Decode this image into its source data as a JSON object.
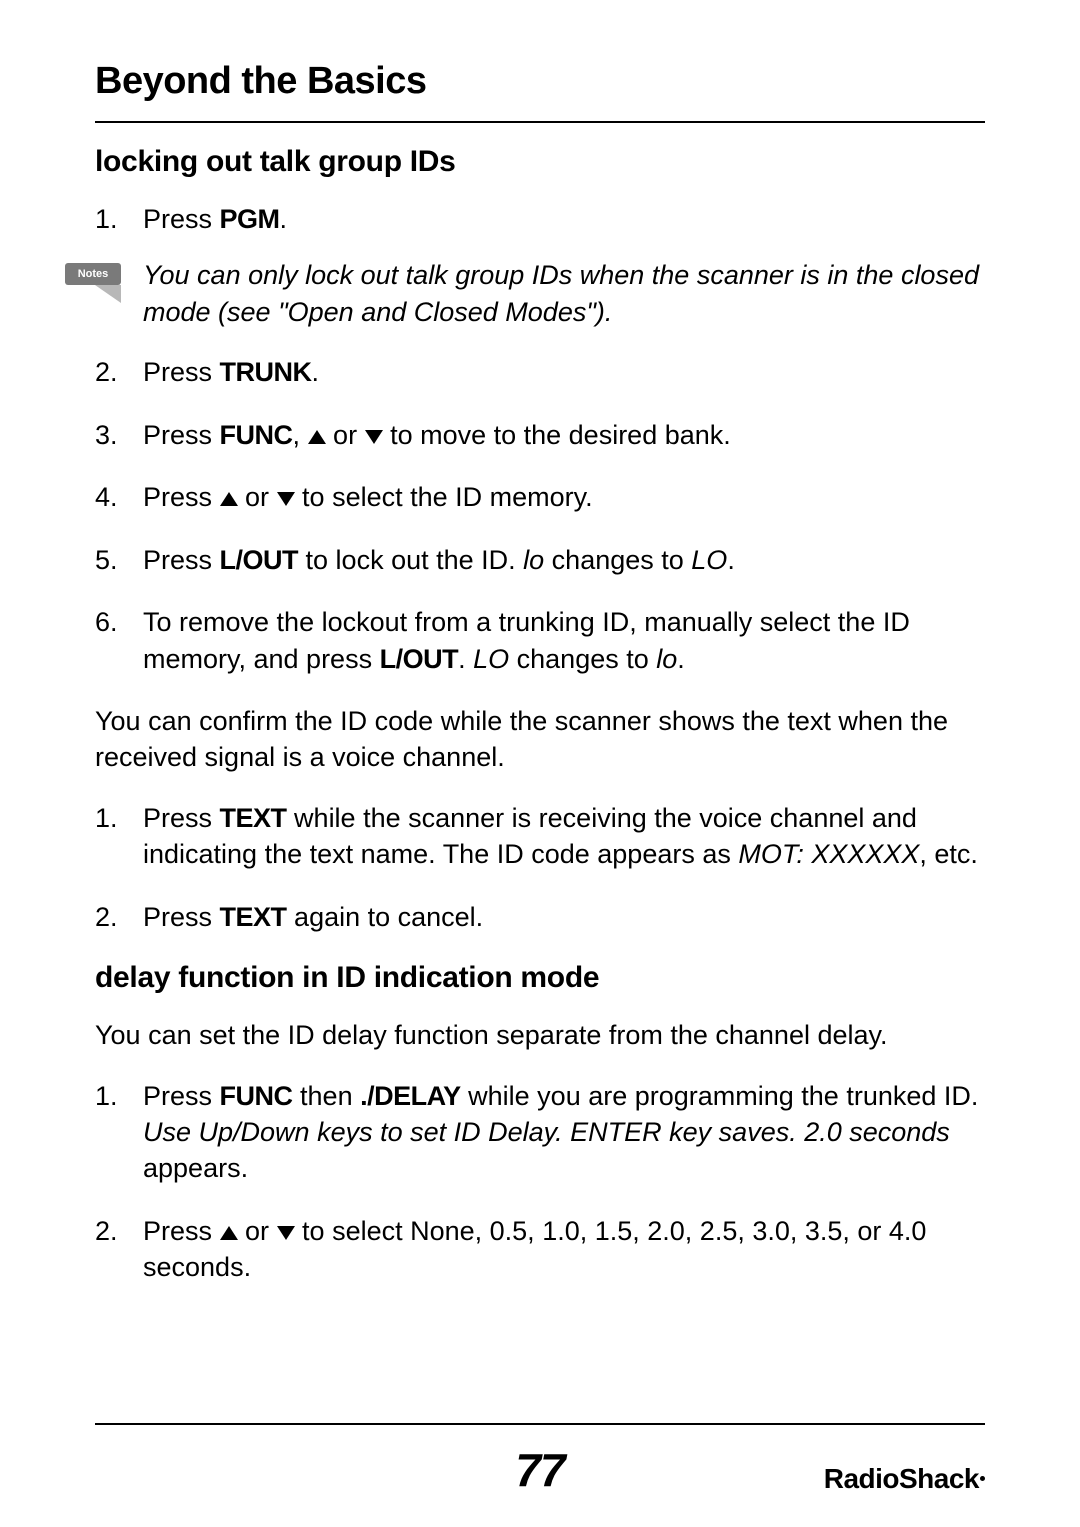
{
  "page": {
    "title": "Beyond the Basics",
    "page_number": "77",
    "brand": "RadioShack"
  },
  "notes_badge": {
    "label": "Notes"
  },
  "section1": {
    "heading": "locking out talk group IDs",
    "step1_num": "1.",
    "step1_a": "Press ",
    "step1_b": "PGM",
    "step1_c": ".",
    "note_text": "You can only lock out talk group IDs when the scanner is in the closed mode (see \"Open and Closed Modes\").",
    "step2_num": "2.",
    "step2_a": "Press ",
    "step2_b": "TRUNK",
    "step2_c": ".",
    "step3_num": "3.",
    "step3_a": "Press ",
    "step3_b": "FUNC",
    "step3_c": ", ",
    "step3_d": " or ",
    "step3_e": " to move to the desired bank.",
    "step4_num": "4.",
    "step4_a": "Press ",
    "step4_b": " or ",
    "step4_c": " to select the ID memory.",
    "step5_num": "5.",
    "step5_a": "Press ",
    "step5_b": "L/OUT",
    "step5_c": " to lock out the ID. ",
    "step5_d": "lo",
    "step5_e": " changes to ",
    "step5_f": "LO",
    "step5_g": ".",
    "step6_num": "6.",
    "step6_a": "To remove the lockout from a trunking ID, manually select the ID memory, and press ",
    "step6_b": "L/OUT",
    "step6_c": ". ",
    "step6_d": "LO",
    "step6_e": " changes to ",
    "step6_f": "lo",
    "step6_g": ".",
    "para1": "You can confirm the ID code while the scanner shows the text when the received signal is a voice channel.",
    "textstep1_num": "1.",
    "textstep1_a": "Press ",
    "textstep1_b": "TEXT",
    "textstep1_c": " while the scanner is receiving the voice channel and indicating the text name. The ID code appears as ",
    "textstep1_d": "MOT: XXXXXX",
    "textstep1_e": ", etc.",
    "textstep2_num": "2.",
    "textstep2_a": "Press ",
    "textstep2_b": "TEXT",
    "textstep2_c": " again to cancel."
  },
  "section2": {
    "heading": "delay function in ID indication mode",
    "para1": "You can set the ID delay function separate from the channel delay.",
    "step1_num": "1.",
    "step1_a": "Press ",
    "step1_b": "FUNC",
    "step1_c": " then ",
    "step1_d": "./DELAY",
    "step1_e": " while you are programming the trunked ID. ",
    "step1_f": "Use Up/Down keys to set ID Delay. ENTER key saves. 2.0 seconds",
    "step1_g": " appears.",
    "step2_num": "2.",
    "step2_a": "Press ",
    "step2_b": " or ",
    "step2_c": " to select None, 0.5, 1.0, 1.5, 2.0, 2.5, 3.0, 3.5, or 4.0 seconds."
  }
}
